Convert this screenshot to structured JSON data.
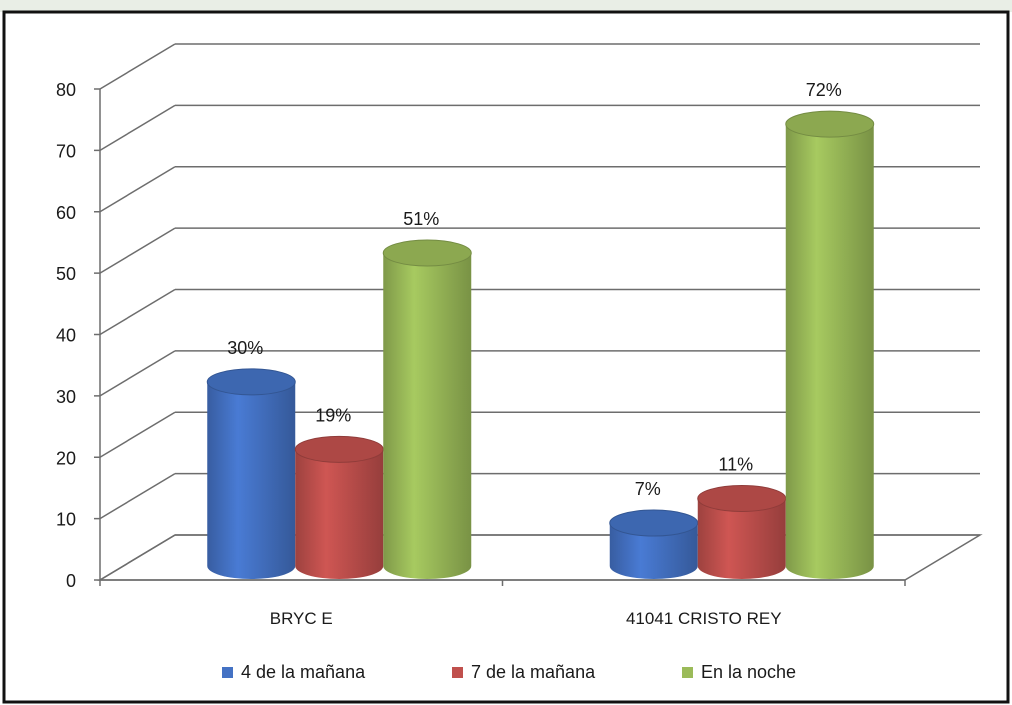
{
  "chart_data": {
    "type": "bar",
    "title": "",
    "xlabel": "",
    "ylabel": "",
    "ylim": [
      0,
      80
    ],
    "yticks": [
      0,
      10,
      20,
      30,
      40,
      50,
      60,
      70,
      80
    ],
    "grid": true,
    "legend_position": "bottom",
    "categories": [
      "BRYC E",
      "41041 CRISTO REY"
    ],
    "series": [
      {
        "name": "4  de la mañana",
        "color": "#4472c4",
        "values": [
          30,
          7
        ],
        "labels": [
          "30%",
          "7%"
        ]
      },
      {
        "name": "7  de la mañana",
        "color": "#c0504d",
        "values": [
          19,
          11
        ],
        "labels": [
          "19%",
          "11%"
        ]
      },
      {
        "name": "En la noche",
        "color": "#9bbb59",
        "values": [
          51,
          72
        ],
        "labels": [
          "51%",
          "72%"
        ]
      }
    ]
  }
}
